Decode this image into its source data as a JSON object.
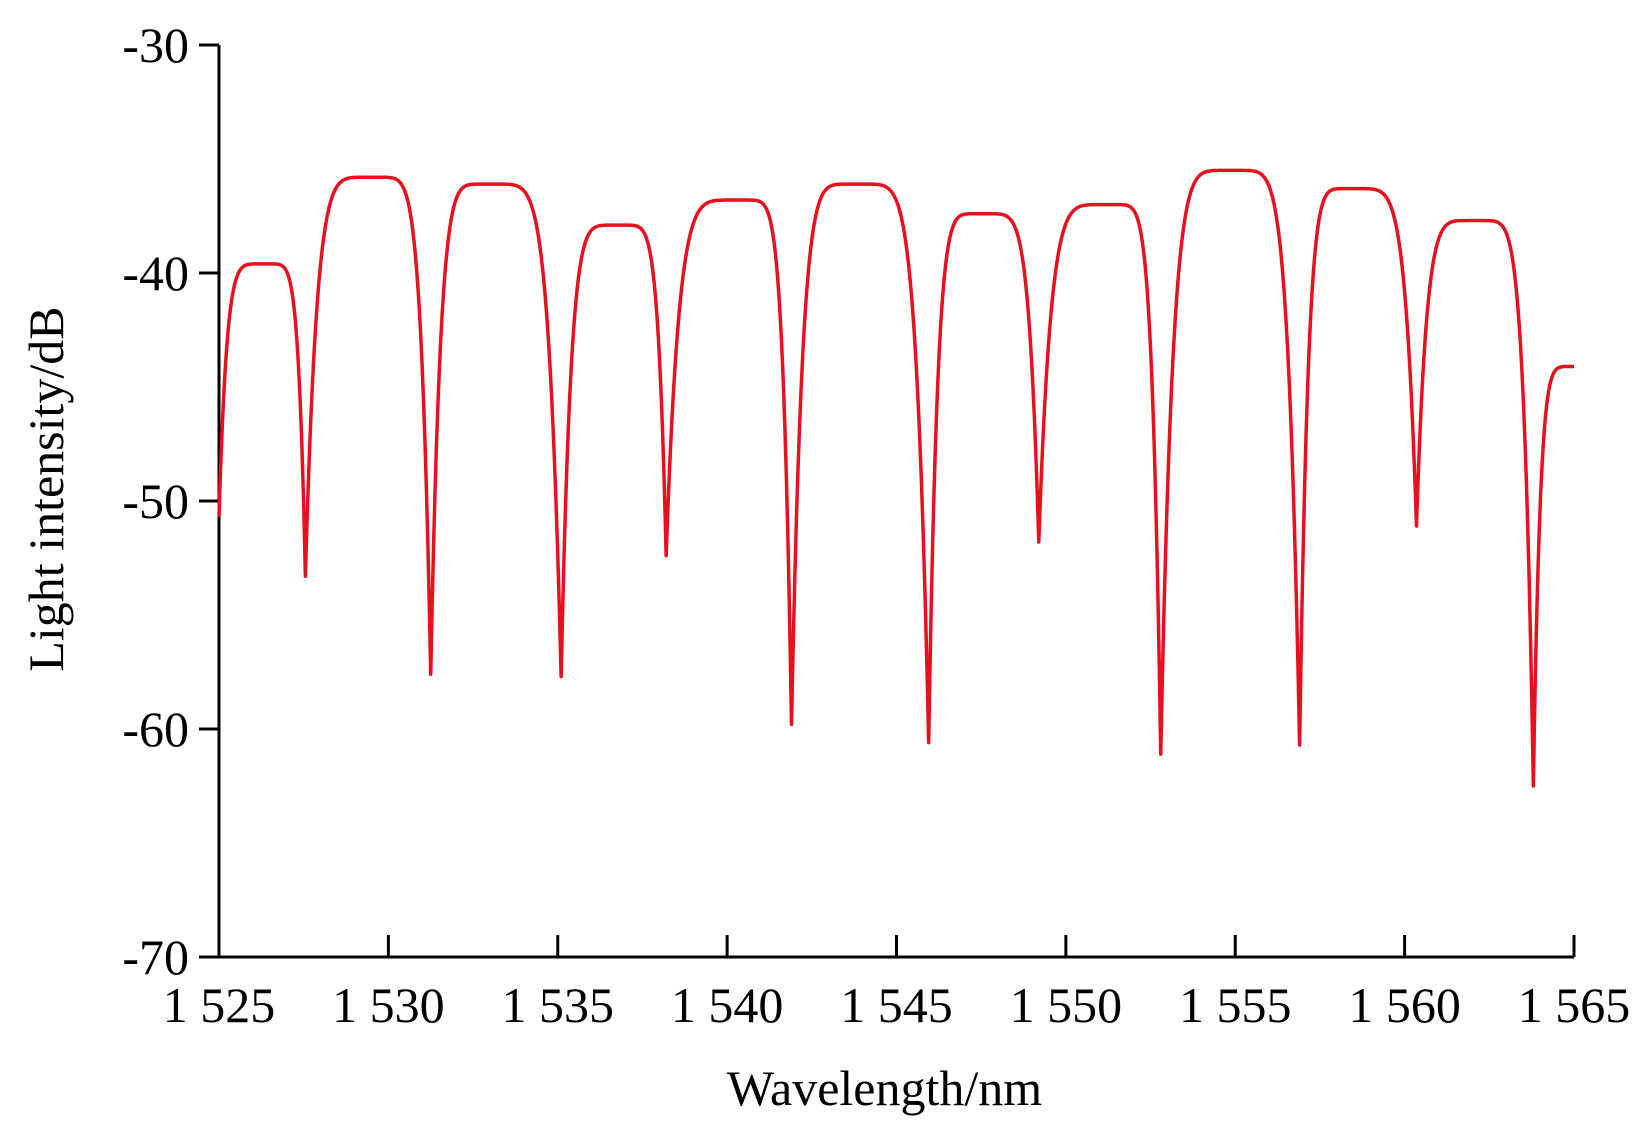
{
  "chart_data": {
    "type": "line",
    "title": "",
    "xlabel": "Wavelength/nm",
    "ylabel": "Light intensity/dB",
    "xlim": [
      1525,
      1565
    ],
    "ylim": [
      -70,
      -30
    ],
    "x_ticks": [
      1525,
      1530,
      1535,
      1540,
      1545,
      1550,
      1555,
      1560,
      1565
    ],
    "x_tick_labels": [
      "1 525",
      "1 530",
      "1 535",
      "1 540",
      "1 545",
      "1 550",
      "1 555",
      "1 560",
      "1 565"
    ],
    "y_ticks": [
      -70,
      -60,
      -50,
      -40,
      -30
    ],
    "y_tick_labels": [
      "-70",
      "-60",
      "-50",
      "-40",
      "-30"
    ],
    "grid": false,
    "legend": false,
    "series": [
      {
        "color": "#e8101e",
        "x": [
          1525,
          1526.35,
          1527.55,
          1529.55,
          1531.25,
          1532.95,
          1535.1,
          1536.8,
          1538.2,
          1540.4,
          1541.9,
          1543.8,
          1545.95,
          1547.5,
          1549.2,
          1551.3,
          1552.8,
          1554.9,
          1556.9,
          1558.4,
          1560.35,
          1562.1,
          1563.8,
          1565
        ],
        "y": [
          -50.7,
          -39.6,
          -53.3,
          -35.8,
          -57.6,
          -36.1,
          -57.7,
          -37.9,
          -52.4,
          -36.8,
          -59.8,
          -36.1,
          -60.6,
          -37.4,
          -51.8,
          -37.0,
          -61.1,
          -35.5,
          -60.7,
          -36.3,
          -51.1,
          -37.7,
          -62.5,
          -44.1
        ]
      }
    ]
  }
}
